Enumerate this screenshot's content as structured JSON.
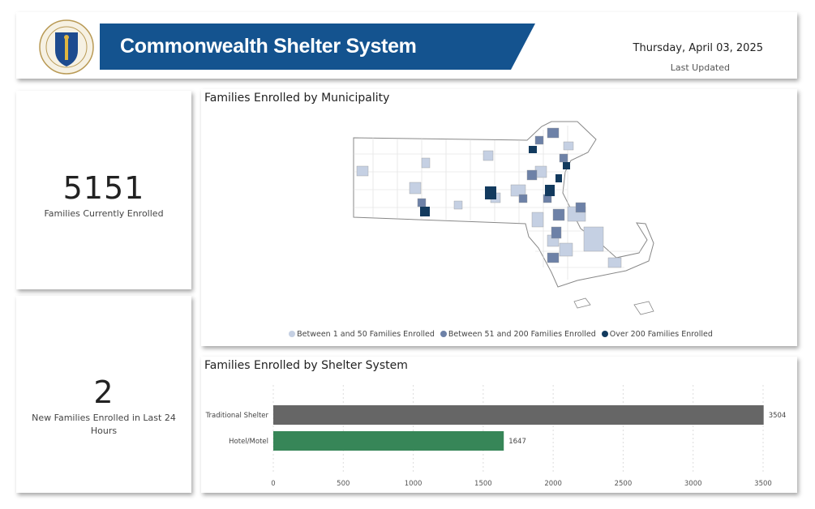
{
  "header": {
    "title": "Commonwealth Shelter System",
    "date": "Thursday, April 03, 2025",
    "last_updated_label": "Last Updated",
    "seal_text": "SIGILLUM REIPUBLICAE MASSACHUSETTENSIS",
    "banner_color": "#14538f"
  },
  "kpis": [
    {
      "value": "5151",
      "label": "Families Currently Enrolled"
    },
    {
      "value": "2",
      "label": "New Families Enrolled in Last 24 Hours"
    }
  ],
  "map": {
    "title": "Families Enrolled by Municipality",
    "legend": [
      {
        "label": "Between 1 and 50 Families Enrolled",
        "color": "#c5d0e3"
      },
      {
        "label": "Between 51 and 200 Families Enrolled",
        "color": "#6d81a7"
      },
      {
        "label": "Over 200 Families Enrolled",
        "color": "#123a5e"
      }
    ]
  },
  "chart_data": {
    "type": "bar",
    "orientation": "horizontal",
    "title": "Families Enrolled by Shelter System",
    "categories": [
      "Traditional Shelter",
      "Hotel/Motel"
    ],
    "values": [
      3504,
      1647
    ],
    "colors": [
      "#666666",
      "#378658"
    ],
    "xlim": [
      0,
      3500
    ],
    "xticks": [
      0,
      500,
      1000,
      1500,
      2000,
      2500,
      3000,
      3500
    ],
    "grid": true
  }
}
